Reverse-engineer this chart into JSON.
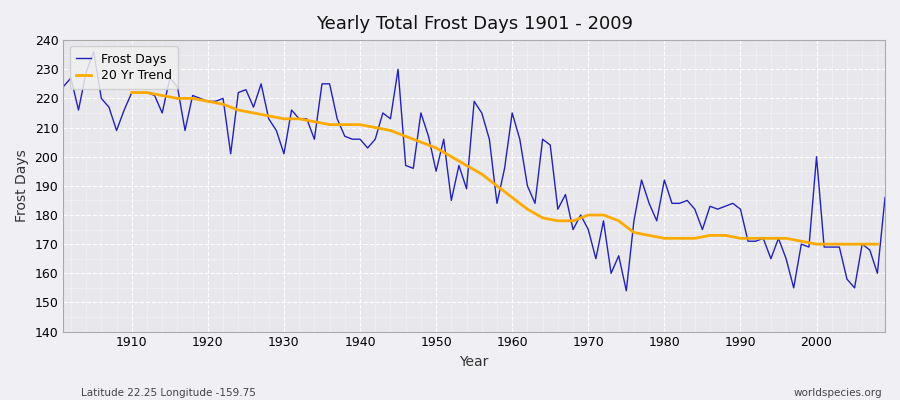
{
  "title": "Yearly Total Frost Days 1901 - 2009",
  "xlabel": "Year",
  "ylabel": "Frost Days",
  "subtitle": "Latitude 22.25 Longitude -159.75",
  "watermark": "worldspecies.org",
  "ylim": [
    140,
    240
  ],
  "yticks": [
    140,
    150,
    160,
    170,
    180,
    190,
    200,
    210,
    220,
    230,
    240
  ],
  "xlim": [
    1901,
    2009
  ],
  "xtick_positions": [
    1910,
    1920,
    1930,
    1940,
    1950,
    1960,
    1970,
    1980,
    1990,
    2000
  ],
  "line_color": "#2222bb",
  "trend_color": "#ffaa00",
  "plot_bg_color": "#e8e8ec",
  "fig_bg_color": "#f0f0f4",
  "grid_color": "#ffffff",
  "legend_bg": "#f0f0f0",
  "years": [
    1901,
    1902,
    1903,
    1904,
    1905,
    1906,
    1907,
    1908,
    1909,
    1910,
    1911,
    1912,
    1913,
    1914,
    1915,
    1916,
    1917,
    1918,
    1919,
    1920,
    1921,
    1922,
    1923,
    1924,
    1925,
    1926,
    1927,
    1928,
    1929,
    1930,
    1931,
    1932,
    1933,
    1934,
    1935,
    1936,
    1937,
    1938,
    1939,
    1940,
    1941,
    1942,
    1943,
    1944,
    1945,
    1946,
    1947,
    1948,
    1949,
    1950,
    1951,
    1952,
    1953,
    1954,
    1955,
    1956,
    1957,
    1958,
    1959,
    1960,
    1961,
    1962,
    1963,
    1964,
    1965,
    1966,
    1967,
    1968,
    1969,
    1970,
    1971,
    1972,
    1973,
    1974,
    1975,
    1976,
    1977,
    1978,
    1979,
    1980,
    1981,
    1982,
    1983,
    1984,
    1985,
    1986,
    1987,
    1988,
    1989,
    1990,
    1991,
    1992,
    1993,
    1994,
    1995,
    1996,
    1997,
    1998,
    1999,
    2000,
    2001,
    2002,
    2003,
    2004,
    2005,
    2006,
    2007,
    2008,
    2009
  ],
  "frost_days": [
    224,
    227,
    216,
    229,
    236,
    220,
    217,
    209,
    216,
    222,
    222,
    222,
    221,
    215,
    227,
    224,
    209,
    221,
    220,
    219,
    219,
    220,
    201,
    222,
    223,
    217,
    225,
    213,
    209,
    201,
    216,
    213,
    213,
    206,
    225,
    225,
    213,
    207,
    206,
    206,
    203,
    206,
    215,
    213,
    230,
    197,
    196,
    215,
    207,
    195,
    206,
    185,
    197,
    189,
    219,
    215,
    206,
    184,
    196,
    215,
    206,
    190,
    184,
    206,
    204,
    182,
    187,
    175,
    180,
    175,
    165,
    178,
    160,
    166,
    154,
    178,
    192,
    184,
    178,
    192,
    184,
    184,
    185,
    182,
    175,
    183,
    182,
    183,
    184,
    182,
    171,
    171,
    172,
    165,
    172,
    165,
    155,
    170,
    169,
    200,
    169,
    169,
    169,
    158,
    155,
    170,
    168,
    160,
    186
  ],
  "trend_years": [
    1910,
    1912,
    1914,
    1916,
    1918,
    1920,
    1922,
    1924,
    1926,
    1928,
    1930,
    1932,
    1934,
    1936,
    1938,
    1940,
    1942,
    1944,
    1946,
    1948,
    1950,
    1952,
    1954,
    1956,
    1958,
    1960,
    1962,
    1964,
    1966,
    1968,
    1970,
    1972,
    1974,
    1976,
    1978,
    1980,
    1982,
    1984,
    1986,
    1988,
    1990,
    1992,
    1994,
    1996,
    1998,
    2000,
    2002,
    2004,
    2006,
    2008
  ],
  "trend_values": [
    222,
    222,
    221,
    220,
    220,
    219,
    218,
    216,
    215,
    214,
    213,
    213,
    212,
    211,
    211,
    211,
    210,
    209,
    207,
    205,
    203,
    200,
    197,
    194,
    190,
    186,
    182,
    179,
    178,
    178,
    180,
    180,
    178,
    174,
    173,
    172,
    172,
    172,
    173,
    173,
    172,
    172,
    172,
    172,
    171,
    170,
    170,
    170,
    170,
    170
  ]
}
